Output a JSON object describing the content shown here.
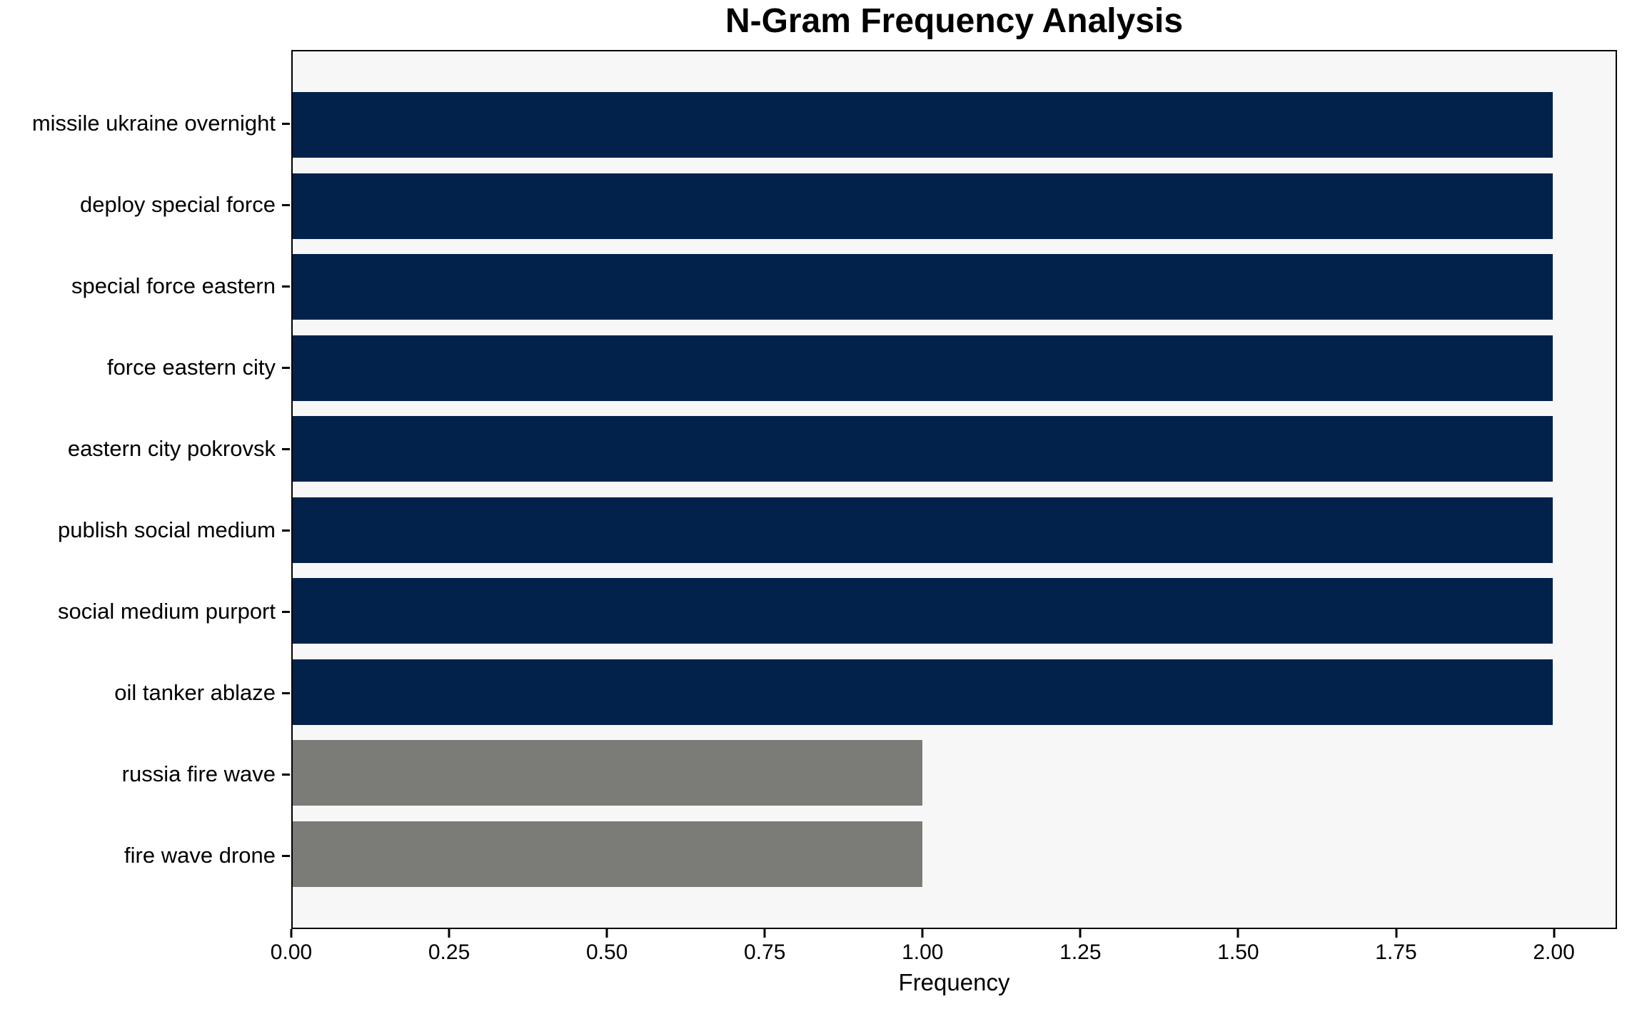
{
  "title": "N-Gram Frequency Analysis",
  "chart_data": {
    "type": "bar",
    "orientation": "horizontal",
    "title": "N-Gram Frequency Analysis",
    "xlabel": "Frequency",
    "ylabel": "",
    "xlim": [
      0,
      2.1
    ],
    "grid": false,
    "plot_background": "#f7f7f7",
    "categories": [
      "missile ukraine overnight",
      "deploy special force",
      "special force eastern",
      "force eastern city",
      "eastern city pokrovsk",
      "publish social medium",
      "social medium purport",
      "oil tanker ablaze",
      "russia fire wave",
      "fire wave drone"
    ],
    "values": [
      2,
      2,
      2,
      2,
      2,
      2,
      2,
      2,
      1,
      1
    ],
    "bar_colors": [
      "#02224c",
      "#02224c",
      "#02224c",
      "#02224c",
      "#02224c",
      "#02224c",
      "#02224c",
      "#02224c",
      "#7b7b78",
      "#7b7b78"
    ],
    "xticks": [
      {
        "value": 0.0,
        "label": "0.00"
      },
      {
        "value": 0.25,
        "label": "0.25"
      },
      {
        "value": 0.5,
        "label": "0.50"
      },
      {
        "value": 0.75,
        "label": "0.75"
      },
      {
        "value": 1.0,
        "label": "1.00"
      },
      {
        "value": 1.25,
        "label": "1.25"
      },
      {
        "value": 1.5,
        "label": "1.50"
      },
      {
        "value": 1.75,
        "label": "1.75"
      },
      {
        "value": 2.0,
        "label": "2.00"
      }
    ],
    "colors": {
      "primary_bar": "#02224c",
      "secondary_bar": "#7b7b78",
      "axis": "#000000",
      "text": "#000000"
    }
  }
}
